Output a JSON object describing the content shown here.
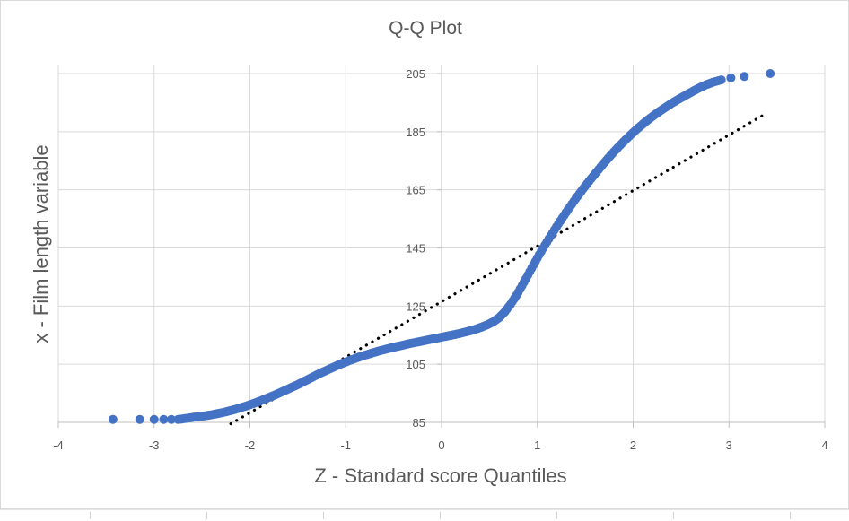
{
  "chart_data": {
    "type": "scatter",
    "title": "Q-Q Plot",
    "xlabel": "Z -  Standard score Quantiles",
    "ylabel": "x - Film length variable",
    "xlim": [
      -4,
      4
    ],
    "ylim": [
      85,
      205
    ],
    "x_ticks": [
      "-4",
      "-3",
      "-2",
      "-1",
      "0",
      "1",
      "2",
      "3",
      "4"
    ],
    "y_ticks": [
      "85",
      "105",
      "125",
      "145",
      "165",
      "185",
      "205"
    ],
    "grid": true,
    "legend": "none",
    "point_color": "#4472C4",
    "trendline": {
      "style": "dotted",
      "color": "#000000",
      "x": [
        -2.2,
        3.4
      ],
      "y": [
        84.5,
        191.5
      ]
    },
    "points": [
      [
        -3.43,
        86
      ],
      [
        -3.15,
        86
      ],
      [
        -3.0,
        86
      ],
      [
        -2.9,
        86
      ],
      [
        -2.82,
        86
      ],
      [
        -2.75,
        86
      ],
      [
        -2.7,
        86.2
      ],
      [
        -2.64,
        86.5
      ],
      [
        -2.58,
        86.8
      ],
      [
        -2.52,
        87
      ],
      [
        -2.46,
        87.3
      ],
      [
        -2.4,
        87.6
      ],
      [
        -2.34,
        88
      ],
      [
        -2.28,
        88.4
      ],
      [
        -2.22,
        88.9
      ],
      [
        -2.16,
        89.4
      ],
      [
        -2.1,
        90
      ],
      [
        -2.04,
        90.6
      ],
      [
        -1.98,
        91.3
      ],
      [
        -1.92,
        92
      ],
      [
        -1.86,
        92.8
      ],
      [
        -1.8,
        93.6
      ],
      [
        -1.74,
        94.4
      ],
      [
        -1.68,
        95.3
      ],
      [
        -1.62,
        96.2
      ],
      [
        -1.56,
        97.1
      ],
      [
        -1.5,
        98
      ],
      [
        -1.44,
        99
      ],
      [
        -1.38,
        100
      ],
      [
        -1.32,
        101
      ],
      [
        -1.26,
        102
      ],
      [
        -1.2,
        102.9
      ],
      [
        -1.14,
        103.8
      ],
      [
        -1.08,
        104.7
      ],
      [
        -1.02,
        105.5
      ],
      [
        -0.96,
        106.3
      ],
      [
        -0.9,
        107
      ],
      [
        -0.84,
        107.7
      ],
      [
        -0.78,
        108.3
      ],
      [
        -0.72,
        108.9
      ],
      [
        -0.66,
        109.5
      ],
      [
        -0.6,
        110
      ],
      [
        -0.54,
        110.5
      ],
      [
        -0.48,
        111
      ],
      [
        -0.42,
        111.4
      ],
      [
        -0.36,
        111.9
      ],
      [
        -0.3,
        112.3
      ],
      [
        -0.24,
        112.7
      ],
      [
        -0.18,
        113.1
      ],
      [
        -0.12,
        113.5
      ],
      [
        -0.06,
        113.9
      ],
      [
        0.0,
        114.3
      ],
      [
        0.06,
        114.7
      ],
      [
        0.12,
        115.1
      ],
      [
        0.18,
        115.5
      ],
      [
        0.24,
        116
      ],
      [
        0.3,
        116.5
      ],
      [
        0.36,
        117.1
      ],
      [
        0.42,
        117.8
      ],
      [
        0.48,
        118.6
      ],
      [
        0.54,
        119.6
      ],
      [
        0.6,
        121
      ],
      [
        0.66,
        123
      ],
      [
        0.72,
        125.6
      ],
      [
        0.78,
        128.6
      ],
      [
        0.84,
        132
      ],
      [
        0.9,
        135.6
      ],
      [
        0.96,
        139.2
      ],
      [
        1.02,
        142.7
      ],
      [
        1.08,
        146
      ],
      [
        1.14,
        149.2
      ],
      [
        1.2,
        152.3
      ],
      [
        1.26,
        155.3
      ],
      [
        1.32,
        158.2
      ],
      [
        1.38,
        161
      ],
      [
        1.44,
        163.7
      ],
      [
        1.5,
        166.3
      ],
      [
        1.56,
        168.8
      ],
      [
        1.62,
        171.2
      ],
      [
        1.68,
        173.6
      ],
      [
        1.74,
        175.9
      ],
      [
        1.8,
        178.1
      ],
      [
        1.86,
        180.2
      ],
      [
        1.92,
        182.2
      ],
      [
        1.98,
        184.1
      ],
      [
        2.04,
        185.9
      ],
      [
        2.1,
        187.6
      ],
      [
        2.16,
        189.2
      ],
      [
        2.22,
        190.7
      ],
      [
        2.28,
        192.1
      ],
      [
        2.34,
        193.4
      ],
      [
        2.4,
        194.7
      ],
      [
        2.46,
        195.9
      ],
      [
        2.52,
        197
      ],
      [
        2.58,
        198.1
      ],
      [
        2.64,
        199.2
      ],
      [
        2.7,
        200.2
      ],
      [
        2.76,
        201.1
      ],
      [
        2.83,
        202
      ],
      [
        2.92,
        202.8
      ],
      [
        3.02,
        203.5
      ],
      [
        3.16,
        204
      ],
      [
        3.43,
        205
      ]
    ]
  }
}
